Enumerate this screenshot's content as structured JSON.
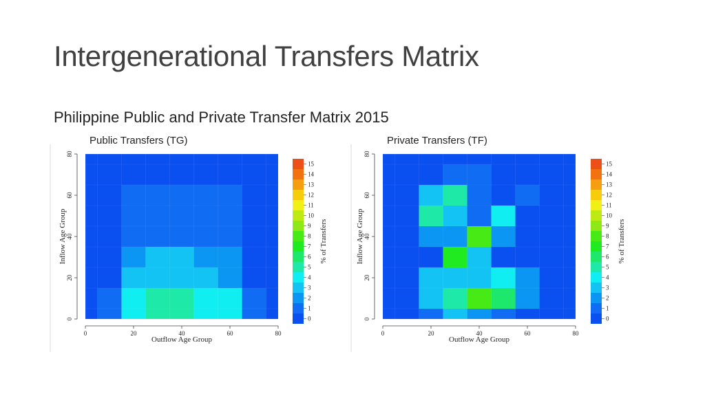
{
  "slide": {
    "title": "Intergenerational Transfers Matrix",
    "subtitle": "Philippine Public and Private Transfer Matrix 2015"
  },
  "chart_data": [
    {
      "type": "heatmap",
      "title": "Public Transfers (TG)",
      "xlabel": "Outflow Age Group",
      "ylabel": "Inflow Age Group",
      "legend_title": "% of Transfers",
      "xlim": [
        0,
        80
      ],
      "ylim": [
        0,
        80
      ],
      "xticks": [
        "0",
        "20",
        "40",
        "60",
        "80"
      ],
      "yticks": [
        "0",
        "20",
        "40",
        "60",
        "80"
      ],
      "colorbar_ticks": [
        "0",
        "1",
        "2",
        "3",
        "4",
        "5",
        "6",
        "7",
        "8",
        "9",
        "10",
        "11",
        "12",
        "13",
        "14",
        "15"
      ],
      "x_bins": [
        0,
        5,
        15,
        25,
        35,
        45,
        55,
        65,
        75,
        80
      ],
      "y_bins": [
        0,
        5,
        15,
        25,
        35,
        45,
        55,
        65,
        75,
        80
      ],
      "values": [
        [
          0,
          1,
          4,
          5,
          5,
          4,
          4,
          1,
          0
        ],
        [
          0,
          1,
          4,
          5,
          5,
          4,
          4,
          1,
          0
        ],
        [
          0,
          0,
          3,
          3,
          3,
          3,
          2,
          0,
          0
        ],
        [
          0,
          0,
          2,
          3,
          3,
          2,
          2,
          0,
          0
        ],
        [
          0,
          0,
          1,
          1,
          1,
          1,
          1,
          0,
          0
        ],
        [
          0,
          0,
          1,
          1,
          1,
          1,
          1,
          0,
          0
        ],
        [
          0,
          0,
          1,
          1,
          1,
          1,
          1,
          0,
          0
        ],
        [
          0,
          0,
          0,
          0,
          0,
          0,
          0,
          0,
          0
        ],
        [
          0,
          0,
          0,
          0,
          0,
          0,
          0,
          0,
          0
        ]
      ]
    },
    {
      "type": "heatmap",
      "title": "Private Transfers (TF)",
      "xlabel": "Outflow Age Group",
      "ylabel": "Inflow Age Group",
      "legend_title": "% of Transfers",
      "xlim": [
        0,
        80
      ],
      "ylim": [
        0,
        80
      ],
      "xticks": [
        "0",
        "20",
        "40",
        "60",
        "80"
      ],
      "yticks": [
        "0",
        "20",
        "40",
        "60",
        "80"
      ],
      "colorbar_ticks": [
        "0",
        "1",
        "2",
        "3",
        "4",
        "5",
        "6",
        "7",
        "8",
        "9",
        "10",
        "11",
        "12",
        "13",
        "14",
        "15"
      ],
      "x_bins": [
        0,
        5,
        15,
        25,
        35,
        45,
        55,
        65,
        75,
        80
      ],
      "y_bins": [
        0,
        5,
        15,
        25,
        35,
        45,
        55,
        65,
        75,
        80
      ],
      "values": [
        [
          0,
          0,
          1,
          3,
          2,
          1,
          0,
          0,
          0
        ],
        [
          0,
          0,
          3,
          5,
          8,
          6,
          2,
          0,
          0
        ],
        [
          0,
          0,
          3,
          3,
          3,
          4,
          2,
          0,
          0
        ],
        [
          0,
          0,
          0,
          7,
          3,
          0,
          0,
          0,
          0
        ],
        [
          0,
          0,
          2,
          2,
          8,
          2,
          0,
          0,
          0
        ],
        [
          0,
          0,
          5,
          3,
          1,
          4,
          0,
          0,
          0
        ],
        [
          0,
          0,
          3,
          5,
          1,
          0,
          1,
          0,
          0
        ],
        [
          0,
          0,
          0,
          1,
          1,
          0,
          0,
          0,
          0
        ],
        [
          0,
          0,
          0,
          0,
          0,
          0,
          0,
          0,
          0
        ]
      ]
    }
  ]
}
